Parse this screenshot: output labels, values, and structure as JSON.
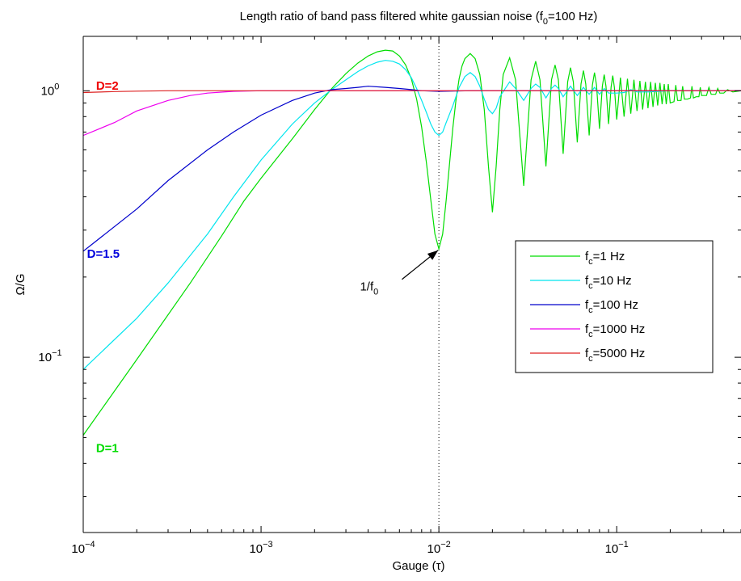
{
  "chart_data": {
    "type": "line",
    "title": {
      "main": "Length ratio of band pass filtered white gaussian noise (f",
      "sub": "0",
      "tail": "=100 Hz)"
    },
    "xlabel": "Gauge (τ)",
    "ylabel": "Ω/G",
    "xscale": "log",
    "yscale": "log",
    "xlim": [
      0.0001,
      0.5
    ],
    "ylim": [
      0.022,
      1.6
    ],
    "grid": false,
    "legend_position": "right-center",
    "x_ticks": [
      {
        "value": 0.0001,
        "base": "10",
        "exp": "−4"
      },
      {
        "value": 0.001,
        "base": "10",
        "exp": "−3"
      },
      {
        "value": 0.01,
        "base": "10",
        "exp": "−2"
      },
      {
        "value": 0.1,
        "base": "10",
        "exp": "−1"
      }
    ],
    "y_ticks": [
      {
        "value": 0.1,
        "base": "10",
        "exp": "−1"
      },
      {
        "value": 1,
        "base": "10",
        "exp": "0"
      }
    ],
    "series": [
      {
        "name": {
          "pre": "f",
          "sub": "c",
          "post": "=1 Hz"
        },
        "color": "#00dd00",
        "points": [
          [
            0.0001,
            0.051
          ],
          [
            0.0002,
            0.098
          ],
          [
            0.0004,
            0.19
          ],
          [
            0.0006,
            0.285
          ],
          [
            0.0008,
            0.385
          ],
          [
            0.001,
            0.47
          ],
          [
            0.0015,
            0.66
          ],
          [
            0.002,
            0.85
          ],
          [
            0.0025,
            1.02
          ],
          [
            0.003,
            1.16
          ],
          [
            0.0035,
            1.27
          ],
          [
            0.004,
            1.35
          ],
          [
            0.0045,
            1.4
          ],
          [
            0.005,
            1.42
          ],
          [
            0.0055,
            1.41
          ],
          [
            0.006,
            1.35
          ],
          [
            0.0065,
            1.25
          ],
          [
            0.007,
            1.11
          ],
          [
            0.0075,
            0.93
          ],
          [
            0.008,
            0.73
          ],
          [
            0.0085,
            0.54
          ],
          [
            0.009,
            0.39
          ],
          [
            0.0095,
            0.29
          ],
          [
            0.01,
            0.255
          ],
          [
            0.0105,
            0.29
          ],
          [
            0.011,
            0.39
          ],
          [
            0.0115,
            0.54
          ],
          [
            0.012,
            0.73
          ],
          [
            0.0125,
            0.93
          ],
          [
            0.013,
            1.11
          ],
          [
            0.0135,
            1.24
          ],
          [
            0.014,
            1.32
          ],
          [
            0.015,
            1.38
          ],
          [
            0.016,
            1.32
          ],
          [
            0.017,
            1.15
          ],
          [
            0.018,
            0.85
          ],
          [
            0.019,
            0.52
          ],
          [
            0.02,
            0.35
          ],
          [
            0.021,
            0.52
          ],
          [
            0.022,
            0.85
          ],
          [
            0.023,
            1.15
          ],
          [
            0.025,
            1.33
          ],
          [
            0.027,
            1.1
          ],
          [
            0.03,
            0.44
          ],
          [
            0.033,
            1.1
          ],
          [
            0.035,
            1.29
          ],
          [
            0.037,
            1.1
          ],
          [
            0.04,
            0.52
          ],
          [
            0.043,
            1.1
          ],
          [
            0.045,
            1.25
          ],
          [
            0.047,
            1.1
          ],
          [
            0.05,
            0.58
          ],
          [
            0.053,
            1.08
          ],
          [
            0.055,
            1.22
          ],
          [
            0.057,
            1.08
          ],
          [
            0.06,
            0.64
          ],
          [
            0.063,
            1.06
          ],
          [
            0.065,
            1.19
          ],
          [
            0.067,
            1.06
          ],
          [
            0.07,
            0.68
          ],
          [
            0.073,
            1.05
          ],
          [
            0.075,
            1.17
          ],
          [
            0.077,
            1.05
          ],
          [
            0.08,
            0.72
          ],
          [
            0.083,
            1.04
          ],
          [
            0.085,
            1.15
          ],
          [
            0.087,
            1.04
          ],
          [
            0.09,
            0.75
          ],
          [
            0.093,
            1.03
          ],
          [
            0.095,
            1.14
          ],
          [
            0.097,
            1.03
          ],
          [
            0.1,
            0.78
          ],
          [
            0.105,
            1.12
          ],
          [
            0.11,
            0.8
          ],
          [
            0.115,
            1.11
          ],
          [
            0.12,
            0.82
          ],
          [
            0.125,
            1.1
          ],
          [
            0.13,
            0.84
          ],
          [
            0.135,
            1.09
          ],
          [
            0.14,
            0.85
          ],
          [
            0.145,
            1.08
          ],
          [
            0.15,
            0.86
          ],
          [
            0.155,
            1.08
          ],
          [
            0.16,
            0.87
          ],
          [
            0.165,
            1.07
          ],
          [
            0.17,
            0.88
          ],
          [
            0.175,
            1.07
          ],
          [
            0.18,
            0.89
          ],
          [
            0.185,
            1.06
          ],
          [
            0.19,
            0.89
          ],
          [
            0.195,
            1.06
          ],
          [
            0.2,
            0.9
          ],
          [
            0.21,
            0.91
          ],
          [
            0.215,
            1.05
          ],
          [
            0.22,
            0.92
          ],
          [
            0.23,
            0.92
          ],
          [
            0.235,
            1.04
          ],
          [
            0.24,
            0.93
          ],
          [
            0.25,
            0.93
          ],
          [
            0.26,
            0.94
          ],
          [
            0.265,
            1.04
          ],
          [
            0.27,
            0.94
          ],
          [
            0.28,
            0.95
          ],
          [
            0.29,
            0.95
          ],
          [
            0.295,
            1.03
          ],
          [
            0.3,
            0.96
          ],
          [
            0.32,
            0.96
          ],
          [
            0.33,
            1.03
          ],
          [
            0.34,
            0.97
          ],
          [
            0.36,
            0.97
          ],
          [
            0.37,
            1.02
          ],
          [
            0.38,
            0.98
          ],
          [
            0.4,
            0.98
          ],
          [
            0.42,
            1.01
          ],
          [
            0.45,
            0.99
          ],
          [
            0.5,
            1.0
          ]
        ]
      },
      {
        "name": {
          "pre": "f",
          "sub": "c",
          "post": "=10 Hz"
        },
        "color": "#00e5ee",
        "points": [
          [
            0.0001,
            0.09
          ],
          [
            0.0002,
            0.14
          ],
          [
            0.0003,
            0.19
          ],
          [
            0.0005,
            0.29
          ],
          [
            0.0007,
            0.4
          ],
          [
            0.001,
            0.55
          ],
          [
            0.0015,
            0.75
          ],
          [
            0.002,
            0.9
          ],
          [
            0.0025,
            1.01
          ],
          [
            0.003,
            1.1
          ],
          [
            0.0035,
            1.18
          ],
          [
            0.004,
            1.24
          ],
          [
            0.0045,
            1.28
          ],
          [
            0.005,
            1.3
          ],
          [
            0.0055,
            1.29
          ],
          [
            0.006,
            1.26
          ],
          [
            0.0065,
            1.2
          ],
          [
            0.007,
            1.12
          ],
          [
            0.0075,
            1.02
          ],
          [
            0.008,
            0.92
          ],
          [
            0.0085,
            0.83
          ],
          [
            0.009,
            0.75
          ],
          [
            0.0095,
            0.7
          ],
          [
            0.01,
            0.68
          ],
          [
            0.0105,
            0.7
          ],
          [
            0.011,
            0.76
          ],
          [
            0.012,
            0.88
          ],
          [
            0.013,
            1.03
          ],
          [
            0.014,
            1.13
          ],
          [
            0.015,
            1.17
          ],
          [
            0.016,
            1.13
          ],
          [
            0.017,
            1.04
          ],
          [
            0.018,
            0.93
          ],
          [
            0.019,
            0.85
          ],
          [
            0.02,
            0.82
          ],
          [
            0.021,
            0.86
          ],
          [
            0.022,
            0.95
          ],
          [
            0.025,
            1.08
          ],
          [
            0.027,
            1.02
          ],
          [
            0.03,
            0.92
          ],
          [
            0.033,
            1.02
          ],
          [
            0.035,
            1.06
          ],
          [
            0.037,
            1.03
          ],
          [
            0.04,
            0.94
          ],
          [
            0.043,
            1.02
          ],
          [
            0.045,
            1.05
          ],
          [
            0.047,
            1.02
          ],
          [
            0.05,
            0.95
          ],
          [
            0.055,
            1.04
          ],
          [
            0.06,
            0.96
          ],
          [
            0.065,
            1.03
          ],
          [
            0.07,
            0.97
          ],
          [
            0.075,
            1.03
          ],
          [
            0.08,
            0.97
          ],
          [
            0.085,
            1.02
          ],
          [
            0.09,
            0.98
          ],
          [
            0.1,
            0.98
          ],
          [
            0.11,
            0.985
          ],
          [
            0.12,
            1.01
          ],
          [
            0.13,
            0.99
          ],
          [
            0.15,
            0.99
          ],
          [
            0.2,
            1.0
          ],
          [
            0.5,
            1.0
          ]
        ]
      },
      {
        "name": {
          "pre": "f",
          "sub": "c",
          "post": "=100 Hz"
        },
        "color": "#0000cc",
        "points": [
          [
            0.0001,
            0.25
          ],
          [
            0.0002,
            0.36
          ],
          [
            0.0003,
            0.46
          ],
          [
            0.0005,
            0.6
          ],
          [
            0.0007,
            0.7
          ],
          [
            0.001,
            0.81
          ],
          [
            0.0015,
            0.92
          ],
          [
            0.002,
            0.98
          ],
          [
            0.0025,
            1.01
          ],
          [
            0.003,
            1.02
          ],
          [
            0.0035,
            1.03
          ],
          [
            0.004,
            1.04
          ],
          [
            0.005,
            1.03
          ],
          [
            0.006,
            1.02
          ],
          [
            0.007,
            1.01
          ],
          [
            0.008,
            1.0
          ],
          [
            0.01,
            0.995
          ],
          [
            0.015,
            1.0
          ],
          [
            0.5,
            1.0
          ]
        ]
      },
      {
        "name": {
          "pre": "f",
          "sub": "c",
          "post": "=1000 Hz"
        },
        "color": "#ee00ee",
        "points": [
          [
            0.0001,
            0.68
          ],
          [
            0.00015,
            0.76
          ],
          [
            0.0002,
            0.84
          ],
          [
            0.0003,
            0.92
          ],
          [
            0.0004,
            0.96
          ],
          [
            0.0005,
            0.98
          ],
          [
            0.0007,
            0.995
          ],
          [
            0.001,
            1.0
          ],
          [
            0.002,
            1.0
          ],
          [
            0.5,
            1.0
          ]
        ]
      },
      {
        "name": {
          "pre": "f",
          "sub": "c",
          "post": "=5000  Hz"
        },
        "color": "#dd2222",
        "points": [
          [
            0.0001,
            0.985
          ],
          [
            0.00015,
            0.993
          ],
          [
            0.0002,
            0.997
          ],
          [
            0.0003,
            1.0
          ],
          [
            0.5,
            1.0
          ]
        ]
      }
    ],
    "annotations": {
      "dimension_labels": [
        {
          "text": "D=2",
          "color": "#ee0000",
          "x": 0.000118,
          "y": 1.01
        },
        {
          "text": "D=1.5",
          "color": "#0000dd",
          "x": 0.000105,
          "y": 0.236
        },
        {
          "text": "D=1",
          "color": "#00dd00",
          "x": 0.000118,
          "y": 0.044
        }
      ],
      "arrow": {
        "label_main": "1/f",
        "label_sub": "0",
        "from": [
          0.0062,
          0.196
        ],
        "to": [
          0.0099,
          0.252
        ],
        "label_x": 0.0036,
        "label_y": 0.178
      },
      "vline_x": 0.01
    }
  }
}
